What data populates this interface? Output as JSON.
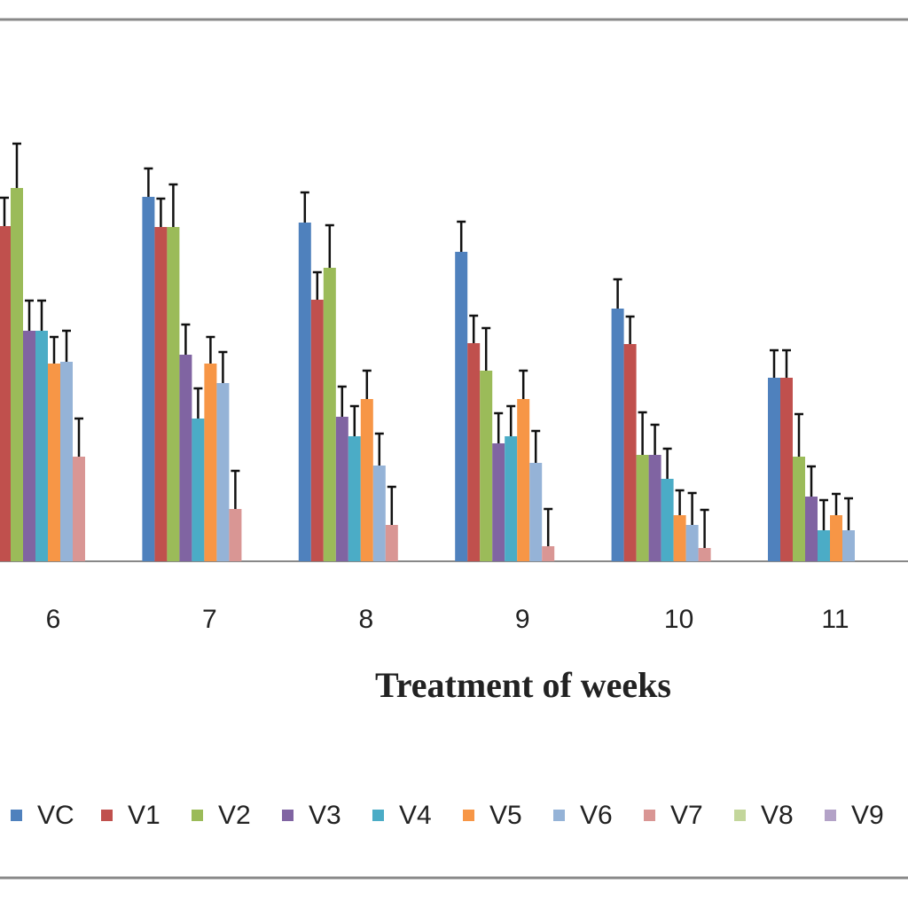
{
  "chart_data": {
    "type": "bar",
    "x_label": "Treatment of weeks",
    "categories": [
      "6",
      "7",
      "8",
      "9",
      "10",
      "11"
    ],
    "ylim": [
      0,
      60
    ],
    "series": [
      {
        "name": "VC",
        "color": "#4f81bd",
        "values": [
          null,
          41.1,
          38.2,
          34.9,
          28.5,
          20.7
        ],
        "errors": [
          null,
          3.2,
          3.4,
          3.4,
          3.3,
          3.1
        ]
      },
      {
        "name": "V1",
        "color": "#c0504d",
        "values": [
          37.8,
          37.7,
          29.5,
          24.6,
          24.5,
          20.7
        ],
        "errors": [
          3.2,
          3.2,
          3.1,
          3.1,
          3.1,
          3.1
        ]
      },
      {
        "name": "V2",
        "color": "#9bbb59",
        "values": [
          42.1,
          37.7,
          33.1,
          21.5,
          12,
          11.8
        ],
        "errors": [
          5,
          4.8,
          4.8,
          4.8,
          4.8,
          4.8
        ]
      },
      {
        "name": "V3",
        "color": "#8064a2",
        "values": [
          26,
          23.3,
          16.3,
          13.3,
          12,
          7.3
        ],
        "errors": [
          3.4,
          3.4,
          3.4,
          3.4,
          3.4,
          3.4
        ]
      },
      {
        "name": "V4",
        "color": "#4bacc6",
        "values": [
          26,
          16.1,
          14.1,
          14.1,
          9.3,
          3.5
        ],
        "errors": [
          3.4,
          3.4,
          3.4,
          3.4,
          3.4,
          3.4
        ]
      },
      {
        "name": "V5",
        "color": "#f79646",
        "values": [
          22.3,
          22.3,
          18.3,
          18.3,
          5.2,
          5.2
        ],
        "errors": [
          3,
          3,
          3.2,
          3.2,
          2.8,
          2.4
        ]
      },
      {
        "name": "V6",
        "color": "#95b3d7",
        "values": [
          22.5,
          20.1,
          10.8,
          11.1,
          4.1,
          3.5
        ],
        "errors": [
          3.5,
          3.5,
          3.6,
          3.6,
          3.6,
          3.6
        ]
      },
      {
        "name": "V7",
        "color": "#d99694",
        "values": [
          11.8,
          5.9,
          4.1,
          1.7,
          1.5,
          null
        ],
        "errors": [
          4.3,
          4.3,
          4.3,
          4.2,
          4.3,
          null
        ]
      },
      {
        "name": "V8",
        "color": "#c3d69b",
        "values": [
          null,
          null,
          null,
          null,
          null,
          null
        ],
        "errors": [
          null,
          null,
          null,
          null,
          null,
          null
        ]
      },
      {
        "name": "V9",
        "color": "#b3a2c7",
        "values": [
          null,
          null,
          null,
          null,
          null,
          null
        ],
        "errors": [
          null,
          null,
          null,
          null,
          null,
          null
        ]
      }
    ]
  }
}
